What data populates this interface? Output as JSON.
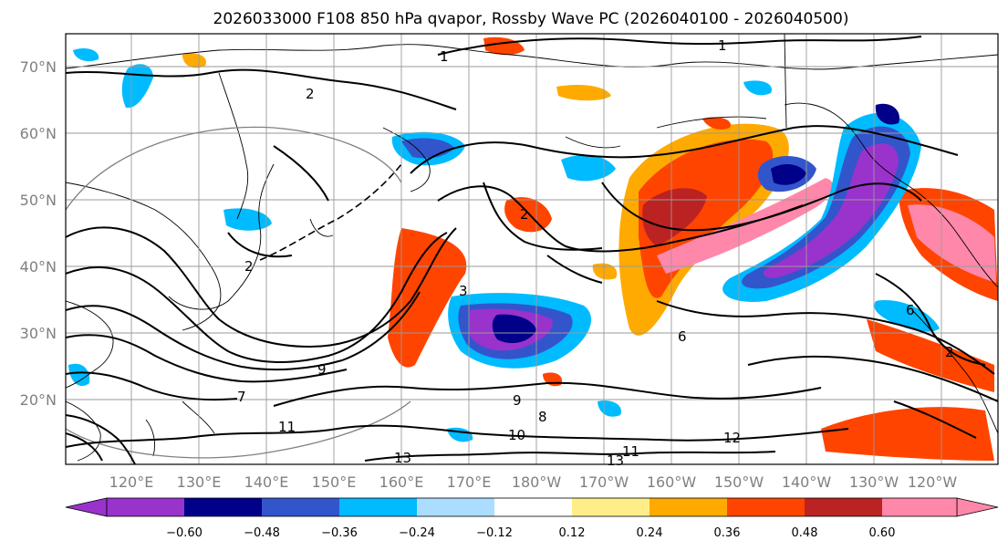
{
  "map": {
    "title": "2026033000 F108 850 hPa qvapor, Rossby Wave PC (2026040100 - 2026040500)",
    "lat_labels": [
      "70°N",
      "60°N",
      "50°N",
      "40°N",
      "30°N",
      "20°N"
    ],
    "lon_labels": [
      "120°E",
      "130°E",
      "140°E",
      "150°E",
      "160°E",
      "170°E",
      "180°W",
      "170°W",
      "160°W",
      "150°W",
      "140°W",
      "130°W",
      "120°W"
    ],
    "contour_labels": [
      "1",
      "1",
      "2",
      "2",
      "2",
      "3",
      "6",
      "6",
      "8",
      "9",
      "9",
      "10",
      "11",
      "11",
      "12",
      "13",
      "13",
      "2",
      "7"
    ]
  },
  "colorbar": {
    "colors": [
      "#9933cc",
      "#000088",
      "#3355cc",
      "#00bbff",
      "#aaddff",
      "#ffffff",
      "#ffee88",
      "#ffaa00",
      "#ff4400",
      "#bb2222",
      "#ff88aa"
    ],
    "tick_labels": [
      "−0.60",
      "−0.48",
      "−0.36",
      "−0.24",
      "−0.12",
      "0.12",
      "0.24",
      "0.36",
      "0.48",
      "0.60"
    ]
  }
}
